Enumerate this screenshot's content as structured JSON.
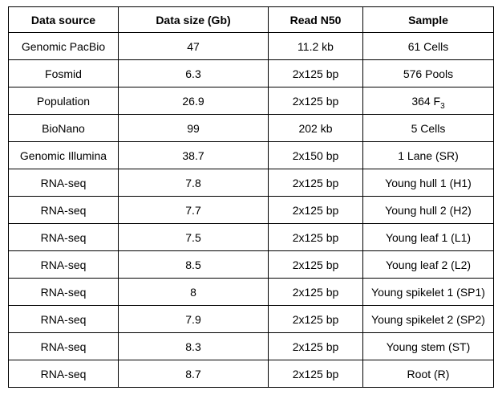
{
  "table": {
    "headers": [
      "Data source",
      "Data size (Gb)",
      "Read N50",
      "Sample"
    ],
    "rows": [
      {
        "source": "Genomic PacBio",
        "size": "47",
        "n50": "11.2 kb",
        "sample": "61 Cells"
      },
      {
        "source": "Fosmid",
        "size": "6.3",
        "n50": "2x125 bp",
        "sample": "576 Pools"
      },
      {
        "source": "Population",
        "size": "26.9",
        "n50": "2x125 bp",
        "sample": "364 F",
        "sample_sub": "3"
      },
      {
        "source": "BioNano",
        "size": "99",
        "n50": "202 kb",
        "sample": "5 Cells"
      },
      {
        "source": "Genomic Illumina",
        "size": "38.7",
        "n50": "2x150 bp",
        "sample": "1 Lane (SR)"
      },
      {
        "source": "RNA-seq",
        "size": "7.8",
        "n50": "2x125 bp",
        "sample": "Young hull 1 (H1)"
      },
      {
        "source": "RNA-seq",
        "size": "7.7",
        "n50": "2x125 bp",
        "sample": "Young hull 2 (H2)"
      },
      {
        "source": "RNA-seq",
        "size": "7.5",
        "n50": "2x125 bp",
        "sample": "Young leaf 1 (L1)"
      },
      {
        "source": "RNA-seq",
        "size": "8.5",
        "n50": "2x125 bp",
        "sample": "Young leaf 2 (L2)"
      },
      {
        "source": "RNA-seq",
        "size": "8",
        "n50": "2x125 bp",
        "sample": "Young spikelet 1 (SP1)"
      },
      {
        "source": "RNA-seq",
        "size": "7.9",
        "n50": "2x125 bp",
        "sample": "Young spikelet 2 (SP2)"
      },
      {
        "source": "RNA-seq",
        "size": "8.3",
        "n50": "2x125 bp",
        "sample": "Young stem (ST)"
      },
      {
        "source": "RNA-seq",
        "size": "8.7",
        "n50": "2x125 bp",
        "sample": "Root (R)"
      }
    ]
  }
}
